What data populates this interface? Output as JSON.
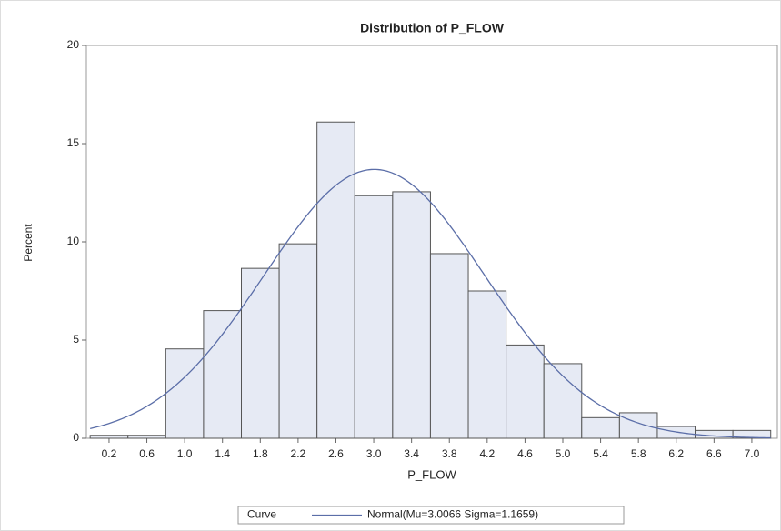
{
  "chart_data": {
    "type": "histogram",
    "title": "Distribution of P_FLOW",
    "x_label": "P_FLOW",
    "y_label": "Percent",
    "bins": [
      0,
      0.4,
      0.8,
      1.2,
      1.6,
      2.0,
      2.4,
      2.8,
      3.2,
      3.6,
      4.0,
      4.4,
      4.8,
      5.2,
      5.6,
      6.0,
      6.4,
      6.8,
      7.2
    ],
    "values": [
      0.15,
      0.15,
      4.55,
      6.5,
      8.65,
      9.9,
      16.1,
      12.35,
      12.55,
      9.4,
      7.5,
      4.75,
      3.8,
      1.05,
      1.3,
      0.6,
      0.4,
      0.4
    ],
    "color": "#e6eaf4",
    "xlim": [
      -0.04,
      7.27
    ],
    "ylim": [
      0,
      20
    ],
    "xticks": [
      0.2,
      0.6,
      {
        "value": 1,
        "label": "1.0"
      },
      1.4,
      1.8,
      2.2,
      2.6,
      {
        "value": 3,
        "label": "3.0"
      },
      3.4,
      3.8,
      4.2,
      4.6,
      {
        "value": 5,
        "label": "5.0"
      },
      5.4,
      5.8,
      6.2,
      6.6,
      {
        "value": 7,
        "label": "7.0"
      }
    ],
    "yticks": [
      0,
      5,
      10,
      15,
      20
    ],
    "curve": {
      "mu": 3.0066,
      "sigma": 1.1659,
      "color": "#5b6ea8"
    },
    "legend": {
      "title": "Curve",
      "label": "Normal(Mu=3.0066 Sigma=1.1659)",
      "position": "bottom"
    }
  }
}
